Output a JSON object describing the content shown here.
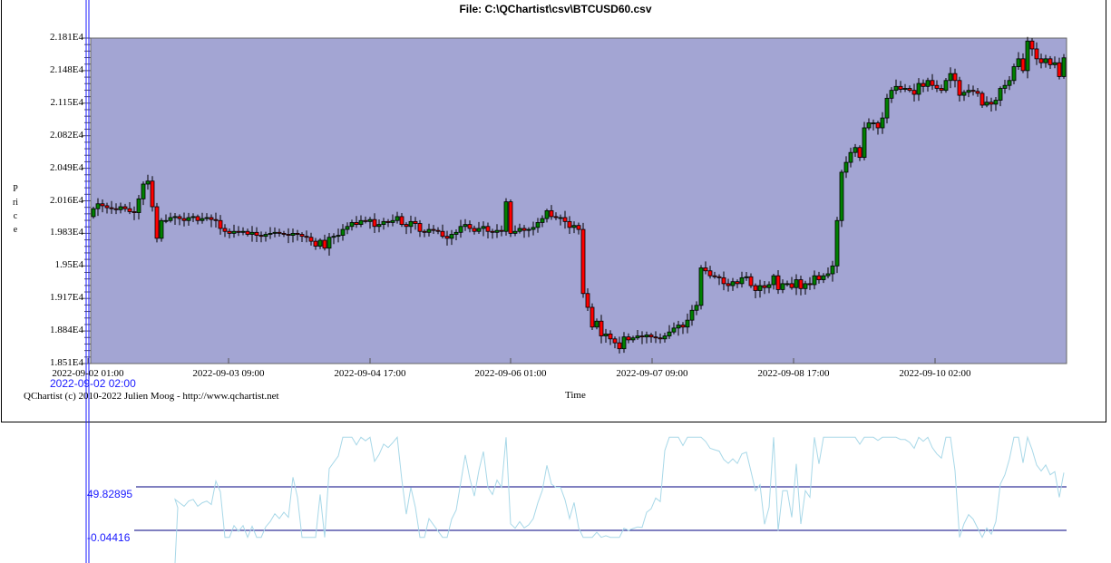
{
  "title": "File: C:\\QChartist\\csv\\BTCUSD60.csv",
  "copyright": "QChartist (c) 2010-2022 Julien Moog - http://www.qchartist.net",
  "crosshair_label": "2022-09-02 02:00",
  "indicator": {
    "upper_level": "49.82895",
    "lower_level": "-0.04416",
    "line_color": "#a8d8e8"
  },
  "colors": {
    "plot_bg": "#a3a5d3",
    "up": "#008000",
    "down": "#ff0000",
    "crosshair": "#1a1aff"
  },
  "chart_data": {
    "type": "candlestick",
    "title": "File: C:\\QChartist\\csv\\BTCUSD60.csv",
    "xlabel": "Time",
    "ylabel": "Price",
    "ylim": [
      18510,
      21810
    ],
    "yticks": [
      "2.181E4",
      "2.148E4",
      "2.115E4",
      "2.082E4",
      "2.049E4",
      "2.016E4",
      "1.983E4",
      "1.95E4",
      "1.917E4",
      "1.884E4",
      "1.851E4"
    ],
    "xticks": [
      "2022-09-02 01:00",
      "2022-09-03 09:00",
      "2022-09-04 17:00",
      "2022-09-06 01:00",
      "2022-09-07 09:00",
      "2022-09-08 17:00",
      "2022-09-10 02:00"
    ],
    "first_open": 20000,
    "close": [
      20080,
      20130,
      20110,
      20090,
      20080,
      20070,
      20100,
      20080,
      20050,
      20040,
      20180,
      20330,
      20360,
      20100,
      19780,
      19960,
      19960,
      19990,
      20000,
      19980,
      19960,
      19990,
      20000,
      19960,
      19980,
      19990,
      19970,
      19960,
      19880,
      19850,
      19830,
      19850,
      19840,
      19850,
      19820,
      19840,
      19810,
      19800,
      19820,
      19830,
      19840,
      19830,
      19820,
      19810,
      19830,
      19820,
      19800,
      19790,
      19750,
      19700,
      19760,
      19680,
      19790,
      19800,
      19810,
      19870,
      19900,
      19940,
      19920,
      19960,
      19950,
      19970,
      19900,
      19920,
      19950,
      19940,
      19960,
      20000,
      19920,
      19900,
      19950,
      19930,
      19850,
      19840,
      19870,
      19860,
      19850,
      19800,
      19780,
      19820,
      19840,
      19900,
      19920,
      19880,
      19850,
      19880,
      19900,
      19850,
      19840,
      19860,
      19850,
      20150,
      19830,
      19850,
      19880,
      19860,
      19870,
      19890,
      19940,
      19980,
      20060,
      20000,
      19990,
      19990,
      19950,
      19890,
      19910,
      19870,
      19220,
      19080,
      18880,
      18940,
      18790,
      18810,
      18760,
      18720,
      18660,
      18780,
      18750,
      18770,
      18790,
      18780,
      18800,
      18780,
      18770,
      18760,
      18790,
      18830,
      18870,
      18900,
      18880,
      18950,
      19050,
      19100,
      19480,
      19450,
      19400,
      19390,
      19380,
      19320,
      19300,
      19340,
      19320,
      19380,
      19390,
      19300,
      19250,
      19300,
      19280,
      19310,
      19400,
      19260,
      19320,
      19320,
      19280,
      19360,
      19270,
      19320,
      19310,
      19400,
      19360,
      19400,
      19420,
      19500,
      19960,
      20450,
      20550,
      20650,
      20700,
      20600,
      20900,
      20950,
      20950,
      20900,
      21000,
      21200,
      21280,
      21320,
      21290,
      21300,
      21280,
      21240,
      21350,
      21320,
      21380,
      21330,
      21300,
      21280,
      21380,
      21450,
      21380,
      21230,
      21260,
      21280,
      21270,
      21250,
      21130,
      21160,
      21140,
      21180,
      21300,
      21330,
      21380,
      21520,
      21600,
      21480,
      21780,
      21700,
      21600,
      21560,
      21600,
      21540,
      21560,
      21420,
      21610
    ]
  }
}
